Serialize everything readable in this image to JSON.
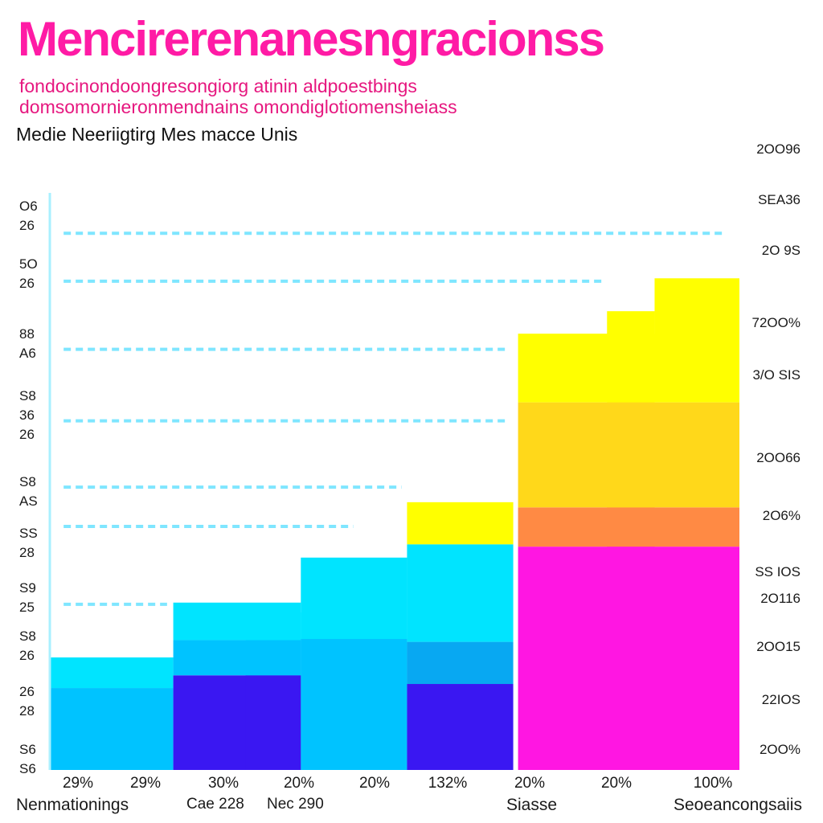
{
  "colors": {
    "title": "#ff1ba5",
    "subtitle": "#e6177f",
    "grid": "#7fe6ff",
    "axis": "#a9f0ff",
    "cyan": "#00e4ff",
    "sky": "#00c3ff",
    "blue": "#08a8f2",
    "violet": "#3a17f2",
    "yellow": "#ffff00",
    "gold": "#ffd81a",
    "orange": "#ff8a44",
    "magenta": "#ff16e2"
  },
  "header": {
    "title": "Mencirerenanesngracionss",
    "subtitle_line1": "fondocinondoongresongiorg atinin aldpoestbings",
    "subtitle_line2": "domsomornieronmendnains omondiglotiomensheiass",
    "unit_label": "Medie Neeriigtirg Mes macce Unis"
  },
  "footer": {
    "left": "Nenmationings",
    "center_left": "Cae 228",
    "center": "Nec 290",
    "center_right": "Siasse",
    "right": "Seoeancongsaiis"
  },
  "chart_data": {
    "type": "bar",
    "title": "Mencirerenanesngracionss",
    "subtitle": "fondocinondoongresongiorg atinin aldpoestbings domsomornieronmendnains omondiglotiomensheiass",
    "ylabel": "Medie Neeriigtirg Mes macce Unis",
    "xlabel": "",
    "grid": true,
    "y_axis_scale": [
      0,
      100
    ],
    "left_tick_labels": [
      [
        "O6",
        "26"
      ],
      [
        "5O",
        "26"
      ],
      [
        "88",
        "A6"
      ],
      [
        "S8",
        "36",
        "26"
      ],
      [
        "S8",
        "AS"
      ],
      [
        "SS",
        "28"
      ],
      [
        "S9",
        "25"
      ],
      [
        "S8",
        "26"
      ],
      [
        "26",
        "28"
      ],
      [
        "S6",
        "S6"
      ]
    ],
    "right_tick_labels": [
      "2OO96",
      "SEA36",
      "2O 9S",
      "72OO%",
      "3/O SIS",
      "2OO66",
      "2O6%",
      "SS IOS",
      "2O116",
      "2OO15",
      "22IOS",
      "2OO%"
    ],
    "x_tick_labels": [
      "29%",
      "29%",
      "30%",
      "20%",
      "20%",
      "132%",
      "20%",
      "20%",
      "100%"
    ],
    "gridlines": [
      {
        "y": 93.0,
        "x0": 0.02,
        "x1": 0.98
      },
      {
        "y": 84.7,
        "x0": 0.02,
        "x1": 0.8
      },
      {
        "y": 72.9,
        "x0": 0.02,
        "x1": 0.66
      },
      {
        "y": 60.5,
        "x0": 0.02,
        "x1": 0.66
      },
      {
        "y": 49.0,
        "x0": 0.02,
        "x1": 0.51
      },
      {
        "y": 42.2,
        "x0": 0.02,
        "x1": 0.44
      },
      {
        "y": 28.7,
        "x0": 0.02,
        "x1": 0.17
      }
    ],
    "stacks": [
      {
        "x0": 0.0,
        "x1": 0.179,
        "segments": [
          {
            "color": "sky",
            "value": 14.2
          },
          {
            "color": "cyan",
            "value": 5.3
          }
        ]
      },
      {
        "x0": 0.179,
        "x1": 0.364,
        "segments": [
          {
            "color": "violet",
            "value": 16.4
          },
          {
            "color": "sky",
            "value": 6.1
          },
          {
            "color": "cyan",
            "value": 6.5
          }
        ]
      },
      {
        "x0": 0.284,
        "x1": 0.364,
        "segments": [
          {
            "color": "violet",
            "value": 16.4
          },
          {
            "color": "sky",
            "value": 6.1
          },
          {
            "color": "cyan",
            "value": 4.8
          }
        ]
      },
      {
        "x0": 0.364,
        "x1": 0.518,
        "segments": [
          {
            "color": "sky",
            "value": 22.7
          },
          {
            "color": "cyan",
            "value": 14.1
          }
        ]
      },
      {
        "x0": 0.518,
        "x1": 0.672,
        "segments": [
          {
            "color": "violet",
            "value": 14.9
          },
          {
            "color": "blue",
            "value": 7.3
          },
          {
            "color": "cyan",
            "value": 16.9
          },
          {
            "color": "yellow",
            "value": 7.3
          }
        ]
      },
      {
        "x0": 0.679,
        "x1": 0.877,
        "segments": [
          {
            "color": "magenta",
            "value": 38.7
          },
          {
            "color": "orange",
            "value": 6.8
          },
          {
            "color": "gold",
            "value": 18.2
          },
          {
            "color": "yellow",
            "value": 11.9
          }
        ]
      },
      {
        "x0": 0.808,
        "x1": 0.877,
        "segments": [
          {
            "color": "magenta",
            "value": 38.7
          },
          {
            "color": "orange",
            "value": 6.8
          },
          {
            "color": "gold",
            "value": 18.2
          },
          {
            "color": "yellow",
            "value": 15.8
          }
        ]
      },
      {
        "x0": 0.877,
        "x1": 1.0,
        "segments": [
          {
            "color": "magenta",
            "value": 38.7
          },
          {
            "color": "orange",
            "value": 6.8
          },
          {
            "color": "gold",
            "value": 18.2
          },
          {
            "color": "yellow",
            "value": 21.5
          }
        ]
      }
    ]
  }
}
